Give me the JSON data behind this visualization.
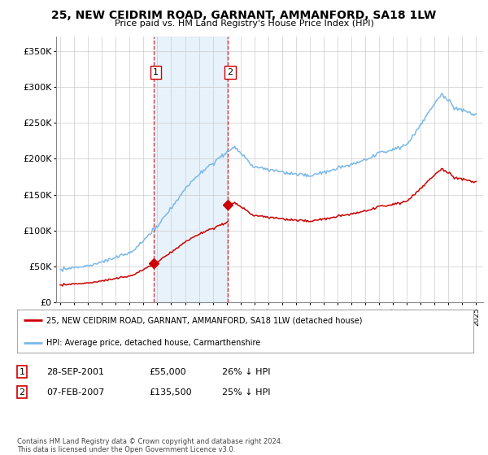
{
  "title": "25, NEW CEIDRIM ROAD, GARNANT, AMMANFORD, SA18 1LW",
  "subtitle": "Price paid vs. HM Land Registry's House Price Index (HPI)",
  "ylabel_ticks": [
    "£0",
    "£50K",
    "£100K",
    "£150K",
    "£200K",
    "£250K",
    "£300K",
    "£350K"
  ],
  "ytick_vals": [
    0,
    50000,
    100000,
    150000,
    200000,
    250000,
    300000,
    350000
  ],
  "ylim": [
    0,
    370000
  ],
  "sale1_date": 2001.74,
  "sale1_price": 55000,
  "sale2_date": 2007.1,
  "sale2_price": 135500,
  "hpi_color": "#7ab8e8",
  "price_color": "#cc0000",
  "shade_color": "#daeaf8",
  "legend_entry1": "25, NEW CEIDRIM ROAD, GARNANT, AMMANFORD, SA18 1LW (detached house)",
  "legend_entry2": "HPI: Average price, detached house, Carmarthenshire",
  "table_row1": [
    "1",
    "28-SEP-2001",
    "£55,000",
    "26% ↓ HPI"
  ],
  "table_row2": [
    "2",
    "07-FEB-2007",
    "£135,500",
    "25% ↓ HPI"
  ],
  "footnote": "Contains HM Land Registry data © Crown copyright and database right 2024.\nThis data is licensed under the Open Government Licence v3.0.",
  "background_color": "#ffffff",
  "grid_color": "#cccccc"
}
